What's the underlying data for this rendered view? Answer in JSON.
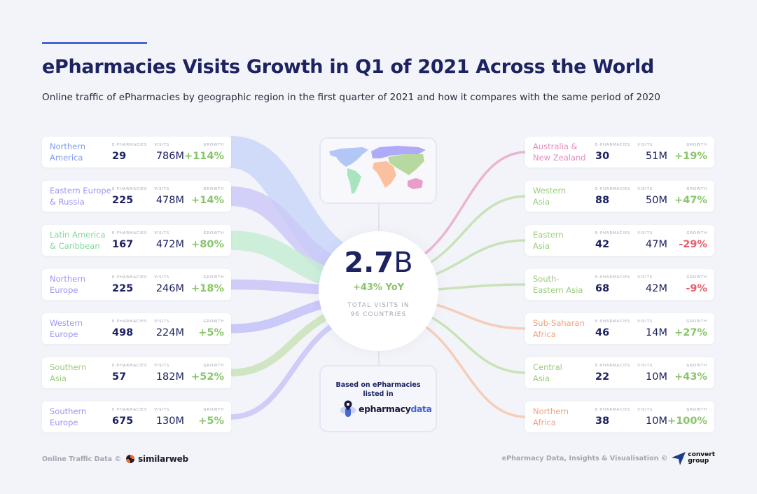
{
  "header": {
    "title": "ePharmacies Visits Growth in Q1 of 2021 Across the World",
    "subtitle": "Online traffic of ePharmacies by geographic region in the first quarter of 2021 and how it compares with the same period of 2020"
  },
  "column_labels": {
    "epharmacies": "E-PHARMACIES",
    "visits": "VISITS",
    "growth": "GROWTH"
  },
  "colors": {
    "positive": "#8ac46a",
    "negative": "#e85d6a",
    "americas_blue": "#7f9cf2",
    "europe_purple": "#9d96f5",
    "latam_green": "#7fd99a",
    "asia_green": "#9ccc7c",
    "oceania_pink": "#e58bbd",
    "africa_orange": "#f0a283"
  },
  "left_regions": [
    {
      "name": "Northern America",
      "line1": "Northern",
      "line2": "America",
      "epharmacies": "29",
      "visits": "786M",
      "growth": "+114%",
      "trend": "positive",
      "color": "#7f9cf2",
      "flow": "#c9d6fa"
    },
    {
      "name": "Eastern Europe & Russia",
      "line1": "Eastern Europe",
      "line2": "& Russia",
      "epharmacies": "225",
      "visits": "478M",
      "growth": "+14%",
      "trend": "positive",
      "color": "#9d96f5",
      "flow": "#cbc9f8"
    },
    {
      "name": "Latin America & Caribbean",
      "line1": "Latin America",
      "line2": "& Caribbean",
      "epharmacies": "167",
      "visits": "472M",
      "growth": "+80%",
      "trend": "positive",
      "color": "#7fd99a",
      "flow": "#c6ecd4"
    },
    {
      "name": "Northern Europe",
      "line1": "Northern",
      "line2": "Europe",
      "epharmacies": "225",
      "visits": "246M",
      "growth": "+18%",
      "trend": "positive",
      "color": "#9d96f5",
      "flow": "#c8c6f8"
    },
    {
      "name": "Western Europe",
      "line1": "Western",
      "line2": "Europe",
      "epharmacies": "498",
      "visits": "224M",
      "growth": "+5%",
      "trend": "positive",
      "color": "#9d96f5",
      "flow": "#c3c1f8"
    },
    {
      "name": "Southern Asia",
      "line1": "Southern",
      "line2": "Asia",
      "epharmacies": "57",
      "visits": "182M",
      "growth": "+52%",
      "trend": "positive",
      "color": "#9ccc7c",
      "flow": "#c9e2b8"
    },
    {
      "name": "Southern Europe",
      "line1": "Southern",
      "line2": "Europe",
      "epharmacies": "675",
      "visits": "130M",
      "growth": "+5%",
      "trend": "positive",
      "color": "#9d96f5",
      "flow": "#c8c6f8"
    }
  ],
  "right_regions": [
    {
      "name": "Australia & New Zealand",
      "line1": "Australia &",
      "line2": "New Zealand",
      "epharmacies": "30",
      "visits": "51M",
      "growth": "+19%",
      "trend": "positive",
      "color": "#e58bbd",
      "flow": "#eab5d2"
    },
    {
      "name": "Western Asia",
      "line1": "Western",
      "line2": "Asia",
      "epharmacies": "88",
      "visits": "50M",
      "growth": "+47%",
      "trend": "positive",
      "color": "#9ccc7c",
      "flow": "#c9e2b8"
    },
    {
      "name": "Eastern Asia",
      "line1": "Eastern",
      "line2": "Asia",
      "epharmacies": "42",
      "visits": "47M",
      "growth": "-29%",
      "trend": "negative",
      "color": "#9ccc7c",
      "flow": "#c9e2b8"
    },
    {
      "name": "South-Eastern Asia",
      "line1": "South-",
      "line2": "Eastern Asia",
      "epharmacies": "68",
      "visits": "42M",
      "growth": "-9%",
      "trend": "negative",
      "color": "#9ccc7c",
      "flow": "#c9e2b8"
    },
    {
      "name": "Sub-Saharan Africa",
      "line1": "Sub-Saharan",
      "line2": "Africa",
      "epharmacies": "46",
      "visits": "14M",
      "growth": "+27%",
      "trend": "positive",
      "color": "#f0a283",
      "flow": "#f6cdb8"
    },
    {
      "name": "Central Asia",
      "line1": "Central",
      "line2": "Asia",
      "epharmacies": "22",
      "visits": "10M",
      "growth": "+43%",
      "trend": "positive",
      "color": "#9ccc7c",
      "flow": "#c9e2b8"
    },
    {
      "name": "Northern Africa",
      "line1": "Northern",
      "line2": "Africa",
      "epharmacies": "38",
      "visits": "10M",
      "growth": "+100%",
      "trend": "positive",
      "color": "#f0a283",
      "flow": "#f6cdb8"
    }
  ],
  "center": {
    "total_number": "2.7",
    "total_unit": "B",
    "yoy": "+43% YoY",
    "caption_line1": "TOTAL VISITS IN",
    "caption_line2": "96 COUNTRIES"
  },
  "source": {
    "line1": "Based on ePharmacies",
    "line2": "listed in",
    "logo_part1": "epharmacy",
    "logo_part2": "data"
  },
  "footer": {
    "left_text": "Online Traffic Data ©",
    "left_brand": "similarweb",
    "right_text": "ePharmacy Data, Insights & Visualisation ©",
    "right_brand_line1": "convert",
    "right_brand_line2": "group"
  }
}
